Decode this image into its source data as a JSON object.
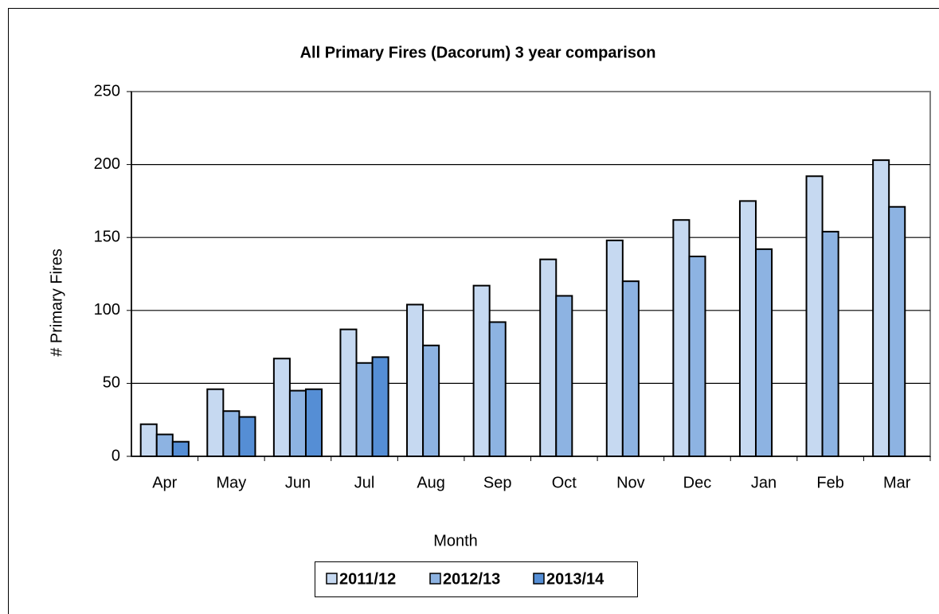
{
  "chart_data": {
    "type": "bar",
    "title": "All Primary Fires (Dacorum) 3 year comparison",
    "xlabel": "Month",
    "ylabel": "# Primary Fires",
    "categories": [
      "Apr",
      "May",
      "Jun",
      "Jul",
      "Aug",
      "Sep",
      "Oct",
      "Nov",
      "Dec",
      "Jan",
      "Feb",
      "Mar"
    ],
    "series": [
      {
        "name": "2011/12",
        "color": "#c6d9f1",
        "values": [
          22,
          46,
          67,
          87,
          104,
          117,
          135,
          148,
          162,
          175,
          192,
          203
        ]
      },
      {
        "name": "2012/13",
        "color": "#8db3e2",
        "values": [
          15,
          31,
          45,
          64,
          76,
          92,
          110,
          120,
          137,
          142,
          154,
          171
        ]
      },
      {
        "name": "2013/14",
        "color": "#558ed5",
        "values": [
          10,
          27,
          46,
          68,
          null,
          null,
          null,
          null,
          null,
          null,
          null,
          null
        ]
      }
    ],
    "ylim": [
      0,
      250
    ],
    "yticks": [
      0,
      50,
      100,
      150,
      200,
      250
    ],
    "grid": true
  }
}
